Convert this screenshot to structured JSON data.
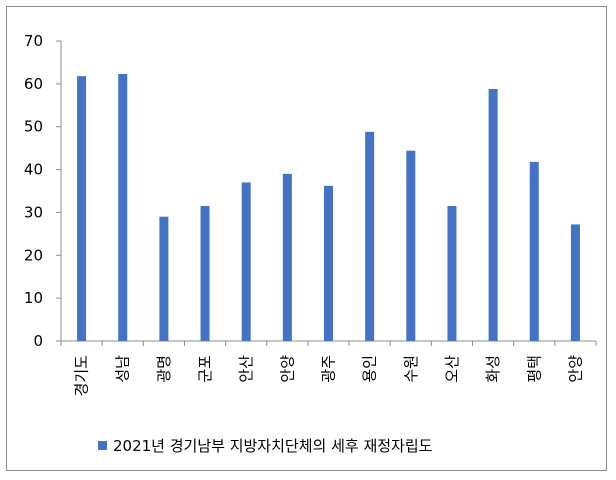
{
  "chart_data": {
    "type": "bar",
    "title": "",
    "xlabel": "",
    "ylabel": "",
    "categories": [
      "경기도",
      "성남",
      "광명",
      "군포",
      "안산",
      "안양",
      "광주",
      "용인",
      "수원",
      "오산",
      "화성",
      "평택",
      "안양"
    ],
    "series": [
      {
        "name": "2021년 경기남부 지방자치단체의 세후 재정자립도",
        "color": "#4472c4",
        "values": [
          61.8,
          62.3,
          29.0,
          31.5,
          37.0,
          39.0,
          36.2,
          48.8,
          44.4,
          31.5,
          58.8,
          41.8,
          27.2
        ]
      }
    ],
    "ylim": [
      0,
      70
    ],
    "yticks": [
      0,
      10,
      20,
      30,
      40,
      50,
      60,
      70
    ],
    "grid": false,
    "legend_position": "bottom"
  }
}
